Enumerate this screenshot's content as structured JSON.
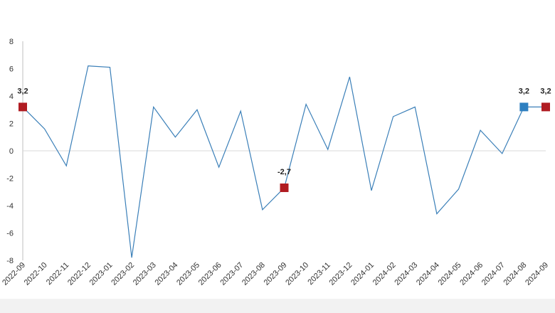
{
  "chart_data": {
    "type": "line",
    "title": "",
    "xlabel": "",
    "ylabel": "",
    "ylim": [
      -8,
      8
    ],
    "yticks": [
      "-8",
      "-6",
      "-4",
      "-2",
      "0",
      "2",
      "4",
      "6",
      "8"
    ],
    "grid": false,
    "legend": "none",
    "categories": [
      "2022-09",
      "2022-10",
      "2022-11",
      "2022-12",
      "2023-01",
      "2023-02",
      "2023-03",
      "2023-04",
      "2023-05",
      "2023-06",
      "2023-07",
      "2023-08",
      "2023-09",
      "2023-10",
      "2023-11",
      "2023-12",
      "2024-01",
      "2024-02",
      "2024-03",
      "2024-04",
      "2024-05",
      "2024-06",
      "2024-07",
      "2024-08",
      "2024-09"
    ],
    "series": [
      {
        "values": [
          3.2,
          1.6,
          -1.1,
          6.2,
          6.1,
          -7.8,
          3.2,
          1.0,
          3.0,
          -1.2,
          2.9,
          -4.3,
          -2.7,
          3.4,
          0.1,
          5.4,
          -2.9,
          2.5,
          3.2,
          -4.6,
          -2.8,
          1.5,
          -0.2,
          3.2,
          3.2
        ],
        "color": "#3a7fb8"
      }
    ],
    "highlights": [
      {
        "index": 0,
        "label": "3,2",
        "color": "#b01c22"
      },
      {
        "index": 12,
        "label": "-2,7",
        "color": "#b01c22"
      },
      {
        "index": 23,
        "label": "3,2",
        "color": "#2e7fc0"
      },
      {
        "index": 24,
        "label": "3,2",
        "color": "#b01c22"
      }
    ],
    "zero_line_color": "#d9d9d9",
    "axis_color": "#bfbfbf",
    "footer_color": "#f2f2f2"
  }
}
